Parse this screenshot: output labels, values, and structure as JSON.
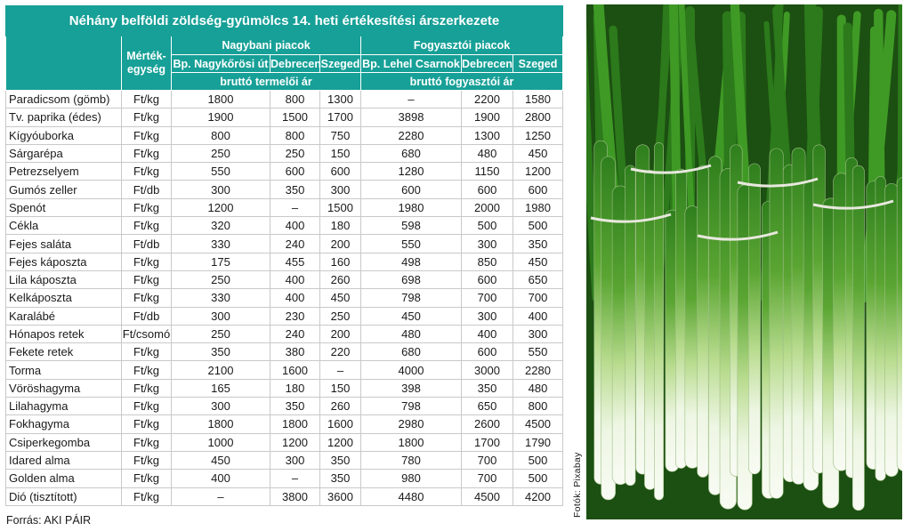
{
  "title": "Néhány belföldi zöldség-gyümölcs 14. heti értékesítési árszerkezete",
  "header": {
    "unit_label": "Mérték-egység",
    "group_wholesale": "Nagybani piacok",
    "group_consumer": "Fogyasztói piacok",
    "markets": [
      "Bp. Nagykőrösi út",
      "Debrecen",
      "Szeged",
      "Bp. Lehel Csarnok",
      "Debrecen",
      "Szeged"
    ],
    "price_wholesale": "bruttó termelői ár",
    "price_consumer": "bruttó fogyasztói ár"
  },
  "rows": [
    {
      "name": "Paradicsom (gömb)",
      "unit": "Ft/kg",
      "values": [
        "1800",
        "800",
        "1300",
        "–",
        "2200",
        "1580"
      ]
    },
    {
      "name": "Tv. paprika (édes)",
      "unit": "Ft/kg",
      "values": [
        "1900",
        "1500",
        "1700",
        "3898",
        "1900",
        "2800"
      ]
    },
    {
      "name": "Kígyóuborka",
      "unit": "Ft/kg",
      "values": [
        "800",
        "800",
        "750",
        "2280",
        "1300",
        "1250"
      ]
    },
    {
      "name": "Sárgarépa",
      "unit": "Ft/kg",
      "values": [
        "250",
        "250",
        "150",
        "680",
        "480",
        "450"
      ]
    },
    {
      "name": "Petrezselyem",
      "unit": "Ft/kg",
      "values": [
        "550",
        "600",
        "600",
        "1280",
        "1150",
        "1200"
      ]
    },
    {
      "name": "Gumós zeller",
      "unit": "Ft/db",
      "values": [
        "300",
        "350",
        "300",
        "600",
        "600",
        "600"
      ]
    },
    {
      "name": "Spenót",
      "unit": "Ft/kg",
      "values": [
        "1200",
        "–",
        "1500",
        "1980",
        "2000",
        "1980"
      ]
    },
    {
      "name": "Cékla",
      "unit": "Ft/kg",
      "values": [
        "320",
        "400",
        "180",
        "598",
        "500",
        "500"
      ]
    },
    {
      "name": "Fejes saláta",
      "unit": "Ft/db",
      "values": [
        "330",
        "240",
        "200",
        "550",
        "300",
        "350"
      ]
    },
    {
      "name": "Fejes káposzta",
      "unit": "Ft/kg",
      "values": [
        "175",
        "455",
        "160",
        "498",
        "850",
        "450"
      ]
    },
    {
      "name": "Lila káposzta",
      "unit": "Ft/kg",
      "values": [
        "250",
        "400",
        "260",
        "698",
        "600",
        "650"
      ]
    },
    {
      "name": "Kelkáposzta",
      "unit": "Ft/kg",
      "values": [
        "330",
        "400",
        "450",
        "798",
        "700",
        "700"
      ]
    },
    {
      "name": "Karalábé",
      "unit": "Ft/db",
      "values": [
        "300",
        "230",
        "250",
        "450",
        "300",
        "400"
      ]
    },
    {
      "name": "Hónapos retek",
      "unit": "Ft/csomó",
      "values": [
        "250",
        "240",
        "200",
        "480",
        "400",
        "300"
      ]
    },
    {
      "name": "Fekete retek",
      "unit": "Ft/kg",
      "values": [
        "350",
        "380",
        "220",
        "680",
        "600",
        "550"
      ]
    },
    {
      "name": "Torma",
      "unit": "Ft/kg",
      "values": [
        "2100",
        "1600",
        "–",
        "4000",
        "3000",
        "2280"
      ]
    },
    {
      "name": "Vöröshagyma",
      "unit": "Ft/kg",
      "values": [
        "165",
        "180",
        "150",
        "398",
        "350",
        "480"
      ]
    },
    {
      "name": "Lilahagyma",
      "unit": "Ft/kg",
      "values": [
        "300",
        "350",
        "260",
        "798",
        "650",
        "800"
      ]
    },
    {
      "name": "Fokhagyma",
      "unit": "Ft/kg",
      "values": [
        "1800",
        "1800",
        "1600",
        "2980",
        "2600",
        "4500"
      ]
    },
    {
      "name": "Csiperkegomba",
      "unit": "Ft/kg",
      "values": [
        "1000",
        "1200",
        "1200",
        "1800",
        "1700",
        "1790"
      ]
    },
    {
      "name": "Idared alma",
      "unit": "Ft/kg",
      "values": [
        "450",
        "300",
        "350",
        "780",
        "700",
        "500"
      ]
    },
    {
      "name": "Golden alma",
      "unit": "Ft/kg",
      "values": [
        "400",
        "–",
        "350",
        "980",
        "700",
        "500"
      ]
    },
    {
      "name": "Dió (tisztított)",
      "unit": "Ft/kg",
      "values": [
        "–",
        "3800",
        "3600",
        "4480",
        "4500",
        "4200"
      ]
    }
  ],
  "source": "Forrás: AKI PÁIR",
  "photo_credit": "Fotók: Pixabay",
  "colors": {
    "header_bg": "#17a097",
    "header_text": "#ffffff"
  }
}
